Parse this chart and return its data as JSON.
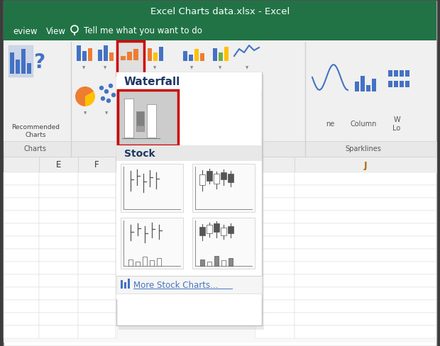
{
  "title_bar_text": "Excel Charts data.xlsx - Excel",
  "title_bar_bg": "#217346",
  "title_bar_text_color": "#ffffff",
  "menu_bar_bg": "#217346",
  "menu_bar_text_color": "#ffffff",
  "ribbon_bg": "#f0f0f0",
  "ribbon_bottom_bg": "#e8e8e8",
  "waterfall_label": "Waterfall",
  "waterfall_label_color": "#1f3864",
  "waterfall_box_bg": "#c8c8c8",
  "waterfall_box_border": "#cc0000",
  "stock_label": "Stock",
  "stock_label_color": "#333333",
  "more_charts_text": "More Stock Charts...",
  "more_charts_color": "#4472c4",
  "dropdown_bg": "#ffffff",
  "dropdown_border": "#c0c0c0",
  "sparklines_text": "Sparklines",
  "column_text": "Column",
  "charts_label": "Charts",
  "recommended_text": "Recommended\nCharts",
  "col_e": "E",
  "col_f": "F",
  "col_j": "J",
  "sheet_bg": "#ffffff",
  "sheet_header_bg": "#f0f0f0",
  "sheet_border": "#d0d0d0",
  "outer_bg": "#3c3c3c",
  "window_bg": "#ffffff",
  "red_border": "#cc0000"
}
